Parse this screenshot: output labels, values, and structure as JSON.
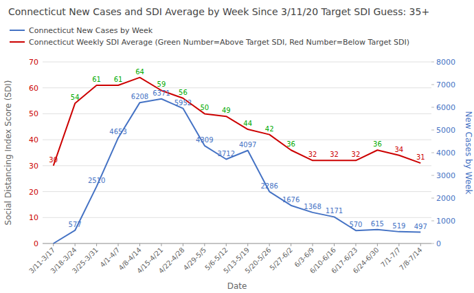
{
  "chart_data": {
    "type": "line",
    "title": "Connecticut New Cases and SDI Average by Week Since 3/11/20 Target SDI Guess: 35+",
    "xlabel": "Date",
    "ylabel": "Social Distancing Index Score (SDI)",
    "y2label": "New Cases by Week",
    "categories": [
      "3/11-3/17",
      "3/18-3/24",
      "3/25-3/31",
      "4/1-4/7",
      "4/8-4/14",
      "4/15-4/21",
      "4/22-4/28",
      "4/29-5/5",
      "5/6-5/12",
      "5/13-5/19",
      "5/20-5/26",
      "5/27-6/2",
      "6/3-6/9",
      "6/10-6/16",
      "6/17-6/23",
      "6/24-6/30",
      "7/1-7/7",
      "7/8-7/14"
    ],
    "series": [
      {
        "name": "Connecticut New Cases by Week",
        "color": "#4472c4",
        "axis": "y2",
        "values": [
          0,
          577,
          2510,
          4653,
          6208,
          6371,
          5952,
          4309,
          3712,
          4097,
          2286,
          1676,
          1368,
          1171,
          570,
          615,
          519,
          497
        ],
        "value_labels": [
          null,
          "577",
          "2510",
          "4653",
          "6208",
          "6371",
          "5952",
          "4309",
          "3712",
          "4097",
          "2286",
          "1676",
          "1368",
          "1171",
          "570",
          "615",
          "519",
          "497"
        ]
      },
      {
        "name": "Connecticut Weekly SDI Average (Green Number=Above Target SDI, Red Number=Below Target SDI)",
        "color": "#cc0000",
        "values": [
          30,
          54,
          61,
          61,
          64,
          59,
          56,
          50,
          49,
          44,
          42,
          36,
          32,
          32,
          32,
          36,
          34,
          31
        ],
        "colors": [
          "#cc0000",
          "#00aa00",
          "#00aa00",
          "#00aa00",
          "#00aa00",
          "#00aa00",
          "#00aa00",
          "#00aa00",
          "#00aa00",
          "#00aa00",
          "#00aa00",
          "#00aa00",
          "#cc0000",
          "#cc0000",
          "#cc0000",
          "#00aa00",
          "#cc0000",
          "#cc0000"
        ]
      }
    ],
    "ylim": [
      0,
      70
    ],
    "yticks": [
      0,
      10,
      20,
      30,
      40,
      50,
      60,
      70
    ],
    "y2lim": [
      0,
      8000
    ],
    "y2ticks": [
      0,
      1000,
      2000,
      3000,
      4000,
      5000,
      6000,
      7000,
      8000
    ],
    "grid": true,
    "data_labels": true,
    "legend": "top"
  }
}
